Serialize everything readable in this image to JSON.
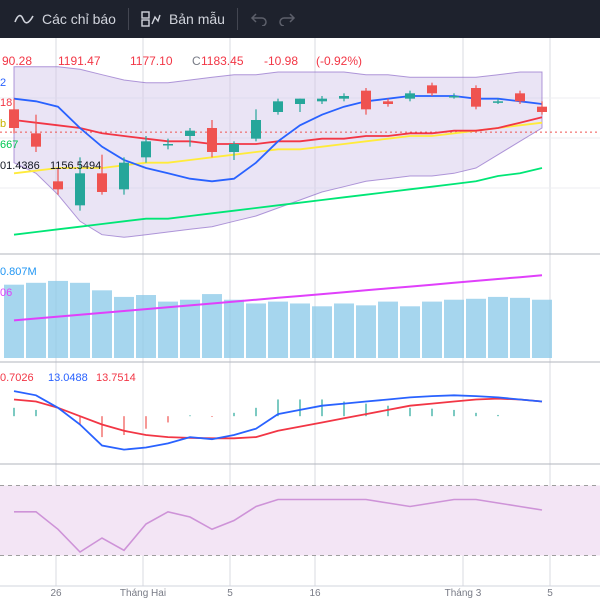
{
  "toolbar": {
    "indicators_label": "Các chỉ báo",
    "templates_label": "Bản mẫu",
    "icons": [
      "indicators-wave-icon",
      "templates-grid-icon",
      "undo-icon",
      "redo-icon"
    ]
  },
  "legend": {
    "price": {
      "open_partial": "90.28",
      "high": "1191.47",
      "low": "1177.10",
      "close_prefix": "C",
      "close": "1183.45",
      "change": "-10.98",
      "change_pct": "(-0.92%)"
    },
    "left_partials": [
      "2",
      "18",
      "b",
      "667"
    ],
    "bb_values": [
      "01.4386",
      "1156.5494"
    ],
    "volume_value": "0.807M",
    "volume_ma": "06",
    "macd_values": [
      "0.7026",
      "13.0488",
      "13.7514"
    ]
  },
  "time_axis": {
    "labels": [
      "26",
      "Tháng Hai",
      "5",
      "16",
      "Tháng 3",
      "5"
    ]
  },
  "colors": {
    "up": "#26a69a",
    "down": "#ef5350",
    "ma_blue": "#2962ff",
    "ma_red": "#f23645",
    "ma_yellow": "#ffeb3b",
    "ma_green": "#00e676",
    "bb_fill": "#d1c4e9",
    "volume": "#88c8e8",
    "volume_ma": "#e040fb",
    "macd_fast": "#2962ff",
    "macd_signal": "#f23645",
    "rsi_fill": "#f3e5f5",
    "rsi_line": "#ce93d8"
  },
  "chart_data": {
    "type": "candlestick",
    "candles": [
      {
        "o": 1192,
        "h": 1196,
        "l": 1183,
        "c": 1185
      },
      {
        "o": 1183,
        "h": 1190,
        "l": 1176,
        "c": 1178
      },
      {
        "o": 1165,
        "h": 1170,
        "l": 1160,
        "c": 1162
      },
      {
        "o": 1156,
        "h": 1174,
        "l": 1154,
        "c": 1168
      },
      {
        "o": 1168,
        "h": 1175,
        "l": 1160,
        "c": 1161
      },
      {
        "o": 1162,
        "h": 1174,
        "l": 1160,
        "c": 1172
      },
      {
        "o": 1174,
        "h": 1182,
        "l": 1172,
        "c": 1180
      },
      {
        "o": 1179,
        "h": 1181,
        "l": 1177,
        "c": 1179
      },
      {
        "o": 1182,
        "h": 1185,
        "l": 1178,
        "c": 1184
      },
      {
        "o": 1185,
        "h": 1188,
        "l": 1174,
        "c": 1176
      },
      {
        "o": 1176,
        "h": 1180,
        "l": 1173,
        "c": 1179
      },
      {
        "o": 1181,
        "h": 1192,
        "l": 1180,
        "c": 1188
      },
      {
        "o": 1191,
        "h": 1196,
        "l": 1190,
        "c": 1195
      },
      {
        "o": 1194,
        "h": 1196,
        "l": 1191,
        "c": 1196
      },
      {
        "o": 1195,
        "h": 1197,
        "l": 1194,
        "c": 1196
      },
      {
        "o": 1196,
        "h": 1198,
        "l": 1195,
        "c": 1197
      },
      {
        "o": 1199,
        "h": 1200,
        "l": 1190,
        "c": 1192
      },
      {
        "o": 1195,
        "h": 1196,
        "l": 1193,
        "c": 1194
      },
      {
        "o": 1196,
        "h": 1199,
        "l": 1195,
        "c": 1198
      },
      {
        "o": 1201,
        "h": 1202,
        "l": 1197,
        "c": 1198
      },
      {
        "o": 1197,
        "h": 1198,
        "l": 1196,
        "c": 1197
      },
      {
        "o": 1200,
        "h": 1201,
        "l": 1192,
        "c": 1193
      },
      {
        "o": 1195,
        "h": 1196,
        "l": 1194,
        "c": 1195
      },
      {
        "o": 1198,
        "h": 1199,
        "l": 1194,
        "c": 1195
      },
      {
        "o": 1193,
        "h": 1195,
        "l": 1190,
        "c": 1191
      }
    ],
    "ma_blue": [
      1196,
      1195,
      1193,
      1185,
      1178,
      1173,
      1170,
      1168,
      1166,
      1165,
      1166,
      1172,
      1180,
      1186,
      1190,
      1193,
      1195,
      1196,
      1197,
      1197,
      1197,
      1196,
      1196,
      1195,
      1194
    ],
    "ma_red": [
      1188,
      1187,
      1186,
      1185,
      1183,
      1182,
      1181,
      1180,
      1180,
      1179,
      1179,
      1179,
      1180,
      1180,
      1181,
      1181,
      1182,
      1182,
      1183,
      1183,
      1184,
      1184,
      1185,
      1187,
      1189
    ],
    "ma_yellow": [
      1168,
      1169,
      1170,
      1170,
      1170,
      1171,
      1172,
      1172,
      1173,
      1174,
      1175,
      1176,
      1177,
      1177,
      1178,
      1179,
      1180,
      1181,
      1182,
      1182,
      1183,
      1184,
      1185,
      1186,
      1187
    ],
    "ma_green": [
      1145,
      1146,
      1147,
      1148,
      1149,
      1150,
      1151,
      1151,
      1152,
      1153,
      1154,
      1155,
      1156,
      1157,
      1158,
      1159,
      1160,
      1161,
      1162,
      1163,
      1164,
      1165,
      1167,
      1168,
      1170
    ],
    "bb_upper": [
      1208,
      1208,
      1208,
      1207,
      1205,
      1203,
      1202,
      1202,
      1203,
      1204,
      1205,
      1205,
      1206,
      1206,
      1206,
      1206,
      1205,
      1205,
      1204,
      1204,
      1204,
      1204,
      1205,
      1206,
      1206
    ],
    "bb_lower": [
      1172,
      1168,
      1160,
      1150,
      1145,
      1144,
      1145,
      1146,
      1147,
      1148,
      1150,
      1152,
      1155,
      1158,
      1161,
      1163,
      1165,
      1166,
      1167,
      1167,
      1168,
      1170,
      1175,
      1180,
      1185
    ],
    "y_range": [
      1140,
      1215
    ],
    "volume": [
      0.78,
      0.8,
      0.82,
      0.8,
      0.72,
      0.65,
      0.67,
      0.6,
      0.62,
      0.68,
      0.62,
      0.58,
      0.6,
      0.58,
      0.55,
      0.58,
      0.56,
      0.6,
      0.55,
      0.6,
      0.62,
      0.63,
      0.65,
      0.64,
      0.62
    ],
    "volume_ma": [
      0.4,
      0.42,
      0.44,
      0.46,
      0.48,
      0.5,
      0.52,
      0.54,
      0.56,
      0.58,
      0.6,
      0.62,
      0.64,
      0.66,
      0.68,
      0.7,
      0.72,
      0.74,
      0.76,
      0.78,
      0.8,
      0.82,
      0.84,
      0.86,
      0.88
    ],
    "volume_range": [
      0,
      1.0
    ],
    "macd_fast": [
      6.0,
      5.0,
      2.0,
      -2.0,
      -7.0,
      -8.0,
      -7.5,
      -6.5,
      -5.0,
      -5.5,
      -4.5,
      -3.0,
      0.5,
      1.5,
      2.5,
      3.0,
      3.5,
      4.0,
      4.5,
      4.8,
      5.0,
      4.8,
      4.5,
      4.0,
      3.5
    ],
    "macd_signal": [
      4.0,
      3.5,
      2.0,
      0.0,
      -2.0,
      -3.5,
      -4.5,
      -5.0,
      -5.2,
      -5.3,
      -5.3,
      -5.0,
      -3.5,
      -2.5,
      -1.5,
      -0.5,
      0.5,
      1.5,
      2.5,
      3.0,
      3.5,
      4.0,
      4.2,
      4.0,
      3.5
    ],
    "macd_hist": [
      2.0,
      1.5,
      0,
      -2.0,
      -5.0,
      -4.5,
      -3.0,
      -1.5,
      0.2,
      -0.2,
      0.8,
      2.0,
      4.0,
      4.0,
      4.0,
      3.5,
      3.0,
      2.5,
      2.0,
      1.8,
      1.5,
      0.8,
      0.3,
      0,
      0
    ],
    "macd_range": [
      -10,
      12
    ],
    "rsi": [
      55,
      55,
      45,
      32,
      40,
      33,
      48,
      55,
      52,
      45,
      50,
      58,
      62,
      62,
      62,
      62,
      62,
      60,
      58,
      60,
      62,
      62,
      60,
      58,
      56
    ],
    "rsi_range": [
      20,
      80
    ],
    "rsi_bands": [
      30,
      70
    ]
  }
}
